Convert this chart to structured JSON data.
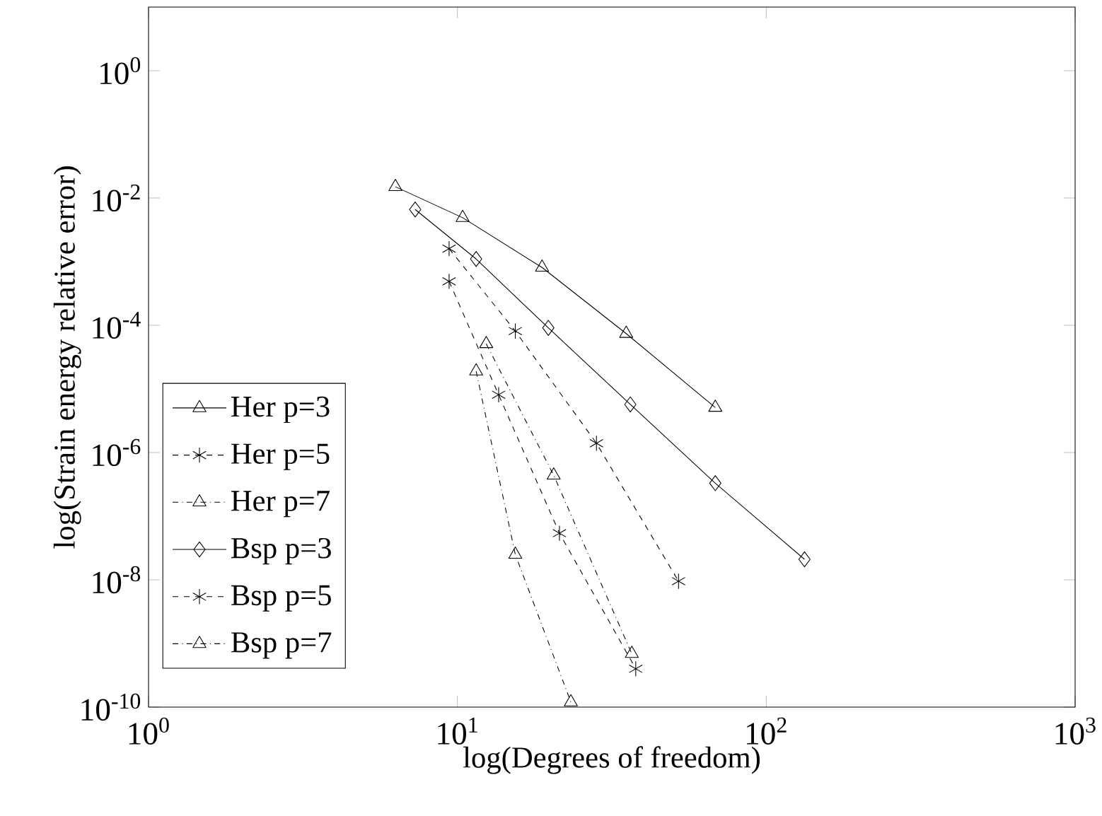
{
  "chart_data": {
    "type": "line",
    "xlabel": "log(Degrees of freedom)",
    "ylabel": "log(Strain energy relative error)",
    "log": "xy",
    "xlim": [
      1,
      1000
    ],
    "ylim": [
      1e-10,
      10
    ],
    "xticks": [
      {
        "value": 1,
        "label": "10$^{0}$"
      },
      {
        "value": 10,
        "label": "10$^{1}$"
      },
      {
        "value": 100,
        "label": "10$^{2}$"
      },
      {
        "value": 1000,
        "label": "10$^{3}$"
      }
    ],
    "yticks": [
      {
        "value": 1e-10,
        "label": "10$^{-10}$"
      },
      {
        "value": 1e-08,
        "label": "10$^{-8}$"
      },
      {
        "value": 1e-06,
        "label": "10$^{-6}$"
      },
      {
        "value": 0.0001,
        "label": "10$^{-4}$"
      },
      {
        "value": 0.01,
        "label": "10$^{-2}$"
      },
      {
        "value": 1,
        "label": "10$^{0}$"
      }
    ],
    "grid": false,
    "legend": "bottom left",
    "series": [
      {
        "name": "Her p=3",
        "color": "#000000",
        "marker": "triangle",
        "line_style": "solid",
        "x": [
          6.3,
          10.4,
          18.8,
          35.2,
          68.4
        ],
        "values": [
          0.015,
          0.0049,
          0.00081,
          7.4e-05,
          5.1e-06
        ]
      },
      {
        "name": "Her p=5",
        "color": "#000000",
        "marker": "cross",
        "line_style": "dashed",
        "x": [
          9.4,
          15.4,
          28.2,
          52.0
        ],
        "values": [
          0.0016,
          8.1e-05,
          1.4e-06,
          9.5e-09
        ]
      },
      {
        "name": "Her p=7",
        "color": "#000000",
        "marker": "triangle",
        "line_style": "dashdot",
        "x": [
          12.4,
          20.5,
          36.7
        ],
        "values": [
          5.1e-05,
          4.4e-07,
          6.9e-10
        ]
      },
      {
        "name": "Bsp p=3",
        "color": "#000000",
        "marker": "diamond",
        "line_style": "solid",
        "x": [
          7.3,
          11.5,
          19.7,
          36.3,
          68.4,
          133
        ],
        "values": [
          0.0066,
          0.0011,
          9.1e-05,
          5.7e-06,
          3.3e-07,
          2.1e-08
        ]
      },
      {
        "name": "Bsp p=5",
        "color": "#000000",
        "marker": "cross",
        "line_style": "dashed",
        "x": [
          9.4,
          13.6,
          21.4,
          37.8
        ],
        "values": [
          0.00049,
          8.1e-06,
          5.4e-08,
          4e-10
        ]
      },
      {
        "name": "Bsp p=7",
        "color": "#000000",
        "marker": "triangle",
        "line_style": "dashdot",
        "x": [
          11.5,
          15.4,
          23.3
        ],
        "values": [
          1.9e-05,
          2.5e-08,
          1.2e-10
        ]
      }
    ]
  }
}
